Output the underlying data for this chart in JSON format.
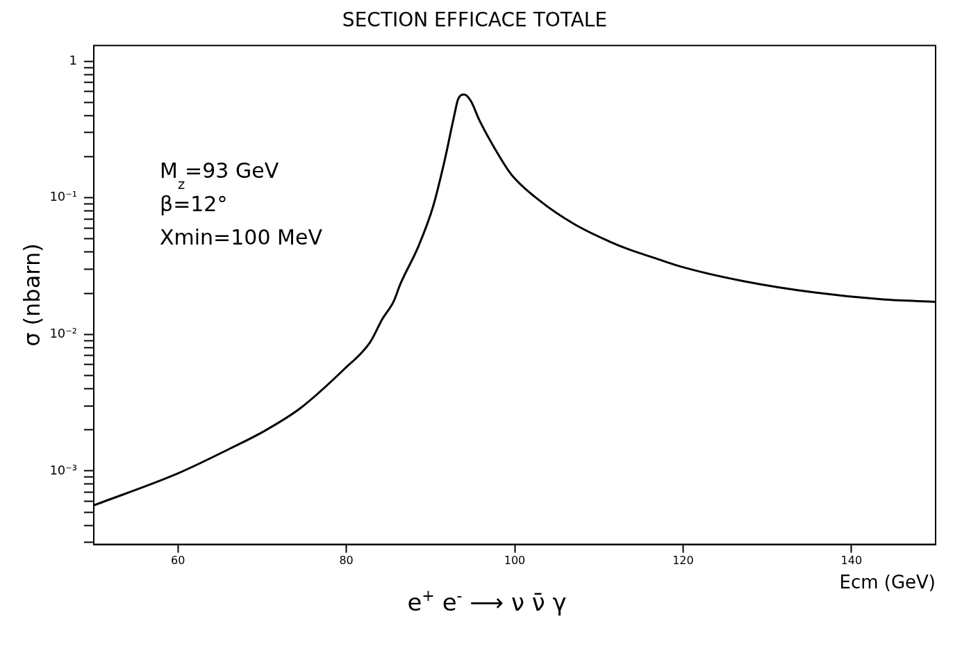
{
  "chart_data": {
    "type": "line",
    "title": "SECTION EFFICACE TOTALE",
    "xlabel": "Ecm (GeV)",
    "ylabel": "σ (nbarn)",
    "log": "y",
    "xlim": [
      50,
      150
    ],
    "xticks": [
      60,
      80,
      100,
      120,
      140
    ],
    "ylim": [
      0.00029,
      1.3
    ],
    "yticks": [
      {
        "value": 0.0003,
        "label": null
      },
      {
        "value": 0.0004,
        "label": null
      },
      {
        "value": 0.0005,
        "label": null
      },
      {
        "value": 0.0006,
        "label": null
      },
      {
        "value": 0.0007,
        "label": null
      },
      {
        "value": 0.0008,
        "label": null
      },
      {
        "value": 0.0009,
        "label": null
      },
      {
        "value": 0.001,
        "label": "10⁻³"
      },
      {
        "value": 0.002,
        "label": null
      },
      {
        "value": 0.003,
        "label": null
      },
      {
        "value": 0.004,
        "label": null
      },
      {
        "value": 0.005,
        "label": null
      },
      {
        "value": 0.006,
        "label": null
      },
      {
        "value": 0.007,
        "label": null
      },
      {
        "value": 0.008,
        "label": null
      },
      {
        "value": 0.009,
        "label": null
      },
      {
        "value": 0.01,
        "label": "10⁻²"
      },
      {
        "value": 0.02,
        "label": null
      },
      {
        "value": 0.03,
        "label": null
      },
      {
        "value": 0.04,
        "label": null
      },
      {
        "value": 0.05,
        "label": null
      },
      {
        "value": 0.06,
        "label": null
      },
      {
        "value": 0.07,
        "label": null
      },
      {
        "value": 0.08,
        "label": null
      },
      {
        "value": 0.09,
        "label": null
      },
      {
        "value": 0.1,
        "label": "10⁻¹"
      },
      {
        "value": 0.2,
        "label": null
      },
      {
        "value": 0.3,
        "label": null
      },
      {
        "value": 0.4,
        "label": null
      },
      {
        "value": 0.5,
        "label": null
      },
      {
        "value": 0.6,
        "label": null
      },
      {
        "value": 0.7,
        "label": null
      },
      {
        "value": 0.8,
        "label": null
      },
      {
        "value": 0.9,
        "label": null
      },
      {
        "value": 1,
        "label": "1"
      }
    ],
    "annotations": [
      "e$^{+}$ e$^{-}$ ⟶ ν ν̄ γ",
      "M$_{z}$=93 GeV",
      "β=12°",
      "Xmin=100 MeV"
    ],
    "series": [
      {
        "color": "#000000",
        "x": [
          50,
          60,
          66.3,
          70.2,
          74.6,
          79.8,
          82.8,
          84.3,
          85.6,
          86.4,
          88.6,
          90.3,
          91.7,
          92.8,
          93.3,
          94.0,
          94.8,
          95.8,
          97.5,
          99.6,
          102.9,
          107.1,
          111.2,
          113.5,
          116.8,
          120,
          127.2,
          135.5,
          143.8,
          150
        ],
        "values": [
          0.00056,
          0.00096,
          0.00147,
          0.00195,
          0.0029,
          0.0056,
          0.0087,
          0.013,
          0.0173,
          0.0232,
          0.0446,
          0.086,
          0.19,
          0.395,
          0.53,
          0.57,
          0.51,
          0.37,
          0.237,
          0.148,
          0.096,
          0.064,
          0.048,
          0.042,
          0.0359,
          0.031,
          0.0245,
          0.0203,
          0.018,
          0.0173
        ]
      }
    ]
  }
}
